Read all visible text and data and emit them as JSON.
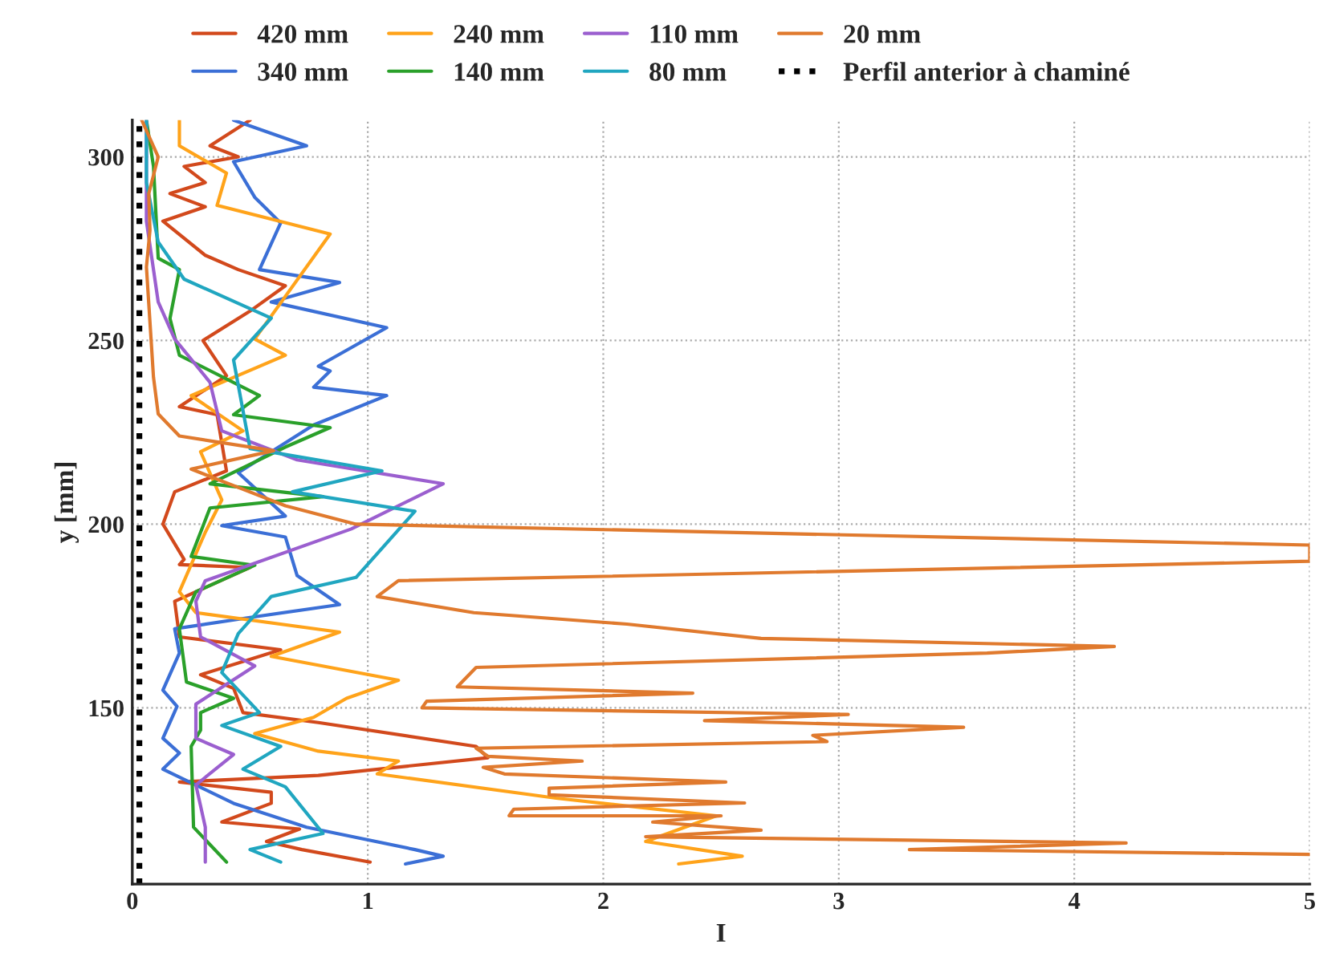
{
  "chart_data": {
    "type": "line",
    "xlabel": "I",
    "ylabel": "y [mm]",
    "xlim": [
      0,
      5
    ],
    "ylim": [
      102,
      310
    ],
    "xticks": [
      0,
      1,
      2,
      3,
      4,
      5
    ],
    "yticks": [
      150,
      200,
      250,
      300
    ],
    "grid": true,
    "legend": "top",
    "marker": "none",
    "series": [
      {
        "name": "420 mm",
        "color": "#d2491c",
        "x": [
          1.01,
          0.72,
          0.57,
          0.71,
          0.38,
          0.59,
          0.59,
          0.2,
          0.79,
          1.51,
          1.46,
          0.79,
          0.47,
          0.43,
          0.29,
          0.63,
          0.2,
          0.18,
          0.5,
          0.2,
          0.22,
          0.13,
          0.18,
          0.4,
          0.36,
          0.2,
          0.4,
          0.3,
          0.5,
          0.65,
          0.45,
          0.31,
          0.13,
          0.31,
          0.16,
          0.31,
          0.22,
          0.45,
          0.33,
          0.5
        ],
        "values": [
          108,
          111.4,
          113.6,
          117,
          118.9,
          124,
          127,
          129.8,
          131.6,
          136.4,
          139.5,
          146,
          148.7,
          155.3,
          159,
          165.8,
          169.3,
          179,
          188.2,
          189,
          190.4,
          200,
          208.8,
          214.5,
          229.8,
          232,
          240.4,
          250,
          258,
          264.9,
          269.3,
          273.2,
          282.5,
          286.4,
          290,
          293,
          297.4,
          300,
          303,
          310
        ]
      },
      {
        "name": "340 mm",
        "color": "#3b6fd6",
        "x": [
          1.16,
          1.32,
          1.2,
          0.74,
          0.43,
          0.13,
          0.2,
          0.13,
          0.19,
          0.13,
          0.2,
          0.18,
          0.5,
          0.88,
          0.7,
          0.65,
          0.38,
          0.65,
          0.45,
          0.77,
          1.08,
          0.77,
          0.84,
          0.79,
          1.08,
          0.59,
          0.88,
          0.54,
          0.63,
          0.52,
          0.43,
          0.74,
          0.43
        ],
        "values": [
          107.5,
          109.6,
          111.4,
          117.5,
          124,
          133.3,
          137.7,
          141.7,
          150.4,
          154.8,
          164.9,
          171.5,
          174.6,
          178.1,
          186,
          196.5,
          199.6,
          202.2,
          214,
          227,
          235,
          237.3,
          241.7,
          243,
          253.5,
          260.5,
          265.8,
          269.3,
          282,
          289,
          298.7,
          303,
          310
        ]
      },
      {
        "name": "240 mm",
        "color": "#ffa31a",
        "x": [
          2.32,
          2.59,
          2.18,
          2.48,
          1.8,
          1.04,
          1.13,
          0.79,
          0.52,
          0.77,
          0.91,
          1.13,
          0.59,
          0.88,
          0.27,
          0.2,
          0.31,
          0.38,
          0.29,
          0.47,
          0.25,
          0.65,
          0.52,
          0.84,
          0.36,
          0.4,
          0.2,
          0.2
        ],
        "values": [
          107.5,
          109.6,
          113.6,
          120.6,
          125.4,
          132,
          135.5,
          138.2,
          143,
          147.4,
          152.6,
          157.5,
          164,
          170.6,
          175.9,
          181.6,
          197.8,
          206.6,
          219.7,
          225.4,
          235,
          246,
          250.4,
          279,
          286.8,
          295.6,
          303,
          310
        ]
      },
      {
        "name": "140 mm",
        "color": "#2aa02a",
        "x": [
          0.4,
          0.26,
          0.25,
          0.29,
          0.29,
          0.43,
          0.23,
          0.2,
          0.27,
          0.52,
          0.25,
          0.33,
          0.81,
          0.33,
          0.65,
          0.84,
          0.43,
          0.54,
          0.2,
          0.16,
          0.2,
          0.11,
          0.09,
          0.06
        ],
        "values": [
          108,
          117.5,
          139.5,
          143.9,
          148.7,
          152.6,
          157,
          171.5,
          181.6,
          188.8,
          191.2,
          204.4,
          207.5,
          211,
          221,
          226.3,
          229.8,
          235,
          246,
          256,
          269.3,
          272.4,
          297.4,
          310
        ]
      },
      {
        "name": "110 mm",
        "color": "#9b5fcf",
        "x": [
          0.31,
          0.31,
          0.27,
          0.43,
          0.27,
          0.27,
          0.52,
          0.29,
          0.27,
          0.31,
          0.93,
          1.32,
          0.7,
          0.38,
          0.33,
          0.18,
          0.11,
          0.06,
          0.06
        ],
        "values": [
          108,
          117.5,
          129,
          137.3,
          141.7,
          151,
          161.4,
          169.3,
          179,
          184.6,
          198.7,
          211,
          217.5,
          225.4,
          238.6,
          250.4,
          260.5,
          282.5,
          310
        ]
      },
      {
        "name": "80 mm",
        "color": "#20a6c0",
        "x": [
          0.63,
          0.5,
          0.81,
          0.65,
          0.47,
          0.63,
          0.38,
          0.54,
          0.38,
          0.45,
          0.59,
          0.95,
          1.2,
          0.68,
          1.06,
          0.5,
          0.43,
          0.59,
          0.22,
          0.11,
          0.06,
          0.06
        ],
        "values": [
          108,
          111.4,
          115.8,
          128.5,
          133.3,
          139.5,
          145.2,
          148.7,
          159.6,
          170.2,
          180.3,
          185.5,
          203.5,
          208.8,
          214.5,
          220.6,
          244.7,
          256.1,
          266.7,
          276.8,
          293,
          310
        ]
      },
      {
        "name": "20 mm",
        "color": "#e07a2e",
        "x": [
          5.0,
          3.3,
          4.22,
          2.18,
          2.67,
          2.21,
          2.5,
          1.6,
          1.62,
          2.6,
          1.77,
          1.77,
          2.52,
          1.58,
          1.49,
          1.91,
          1.51,
          1.46,
          2.95,
          2.89,
          3.53,
          2.43,
          3.04,
          1.23,
          1.25,
          2.38,
          1.38,
          1.46,
          3.63,
          4.17,
          2.67,
          2.1,
          1.45,
          1.04,
          1.13,
          5.0,
          5.0,
          0.95,
          0.65,
          0.45,
          0.25,
          0.6,
          0.2,
          0.11,
          0.09,
          0.08,
          0.07,
          0.06,
          0.075,
          0.07,
          0.09,
          0.11,
          0.04
        ],
        "values": [
          110.1,
          111.4,
          113.2,
          114.9,
          116.7,
          118.9,
          120.6,
          120.6,
          122.4,
          124.1,
          126.3,
          128.1,
          129.8,
          132,
          133.8,
          135.5,
          136.8,
          139,
          140.8,
          142.5,
          144.7,
          146.5,
          148.2,
          150,
          151.8,
          154,
          155.7,
          161,
          164.9,
          166.7,
          168.9,
          172.8,
          175.9,
          180.3,
          184.6,
          189.9,
          194.3,
          200,
          205,
          210,
          215,
          220,
          224,
          230,
          240,
          250,
          260,
          270,
          280,
          290,
          295,
          300,
          310
        ]
      },
      {
        "name": "Perfil anterior à chaminé",
        "color": "#000000",
        "line_style": "dotted",
        "x": [
          0.03,
          0.03
        ],
        "values": [
          102,
          310
        ]
      }
    ]
  }
}
